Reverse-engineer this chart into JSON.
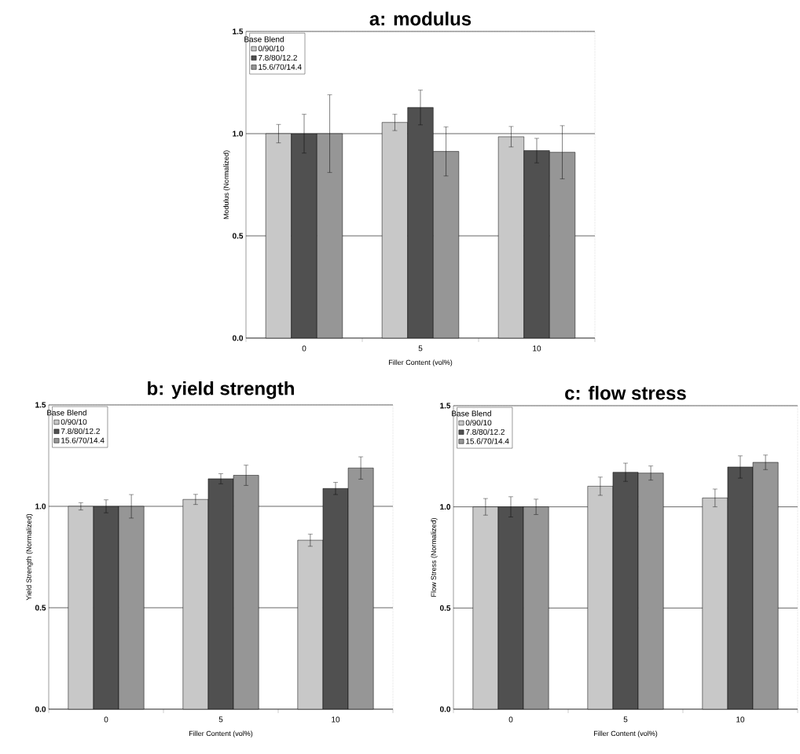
{
  "chart_data": [
    {
      "type": "bar",
      "title": "a:  modulus",
      "xlabel": "Filler Content (vol%)",
      "ylabel": "Modulus (Normalized)",
      "legend_title": "Base Blend",
      "categories": [
        "0",
        "5",
        "10"
      ],
      "series": [
        {
          "name": "0/90/10",
          "color": "#c8c8c8",
          "values": [
            1.0,
            1.055,
            0.985
          ],
          "errors": [
            0.045,
            0.04,
            0.05
          ]
        },
        {
          "name": "7.8/80/12.2",
          "color": "#505050",
          "values": [
            1.0,
            1.128,
            0.917
          ],
          "errors": [
            0.095,
            0.085,
            0.06
          ]
        },
        {
          "name": "15.6/70/14.4",
          "color": "#969696",
          "values": [
            1.0,
            0.913,
            0.909
          ],
          "errors": [
            0.19,
            0.12,
            0.13
          ]
        }
      ],
      "ylim": [
        0,
        1.5
      ],
      "yticks": [
        {
          "value": 0,
          "label": "0.0"
        },
        {
          "value": 0.5,
          "label": "0.5"
        },
        {
          "value": 1,
          "label": "1.0"
        },
        {
          "value": 1.5,
          "label": "1.5"
        }
      ],
      "grid": "y",
      "legend": "top left"
    },
    {
      "type": "bar",
      "title": "b:  yield strength",
      "xlabel": "Filler Content (vol%)",
      "ylabel": "Yield Strength (Normalized)",
      "legend_title": "Base Blend",
      "categories": [
        "0",
        "5",
        "10"
      ],
      "series": [
        {
          "name": "0/90/10",
          "color": "#c8c8c8",
          "values": [
            1.0,
            1.034,
            0.833
          ],
          "errors": [
            0.018,
            0.025,
            0.03
          ]
        },
        {
          "name": "7.8/80/12.2",
          "color": "#505050",
          "values": [
            1.0,
            1.136,
            1.088
          ],
          "errors": [
            0.032,
            0.025,
            0.03
          ]
        },
        {
          "name": "15.6/70/14.4",
          "color": "#969696",
          "values": [
            1.0,
            1.153,
            1.189
          ],
          "errors": [
            0.058,
            0.05,
            0.055
          ]
        }
      ],
      "ylim": [
        0,
        1.5
      ],
      "yticks": [
        {
          "value": 0,
          "label": "0.0"
        },
        {
          "value": 0.5,
          "label": "0.5"
        },
        {
          "value": 1,
          "label": "1.0"
        },
        {
          "value": 1.5,
          "label": "1.5"
        }
      ],
      "grid": "y",
      "legend": "top left"
    },
    {
      "type": "bar",
      "title": "c:  flow stress",
      "xlabel": "Filler Content (vol%)",
      "ylabel": "Flow Stress (Normalized)",
      "legend_title": "Base Blend",
      "categories": [
        "0",
        "5",
        "10"
      ],
      "series": [
        {
          "name": "0/90/10",
          "color": "#c8c8c8",
          "values": [
            1.0,
            1.102,
            1.044
          ],
          "errors": [
            0.041,
            0.045,
            0.044
          ]
        },
        {
          "name": "7.8/80/12.2",
          "color": "#505050",
          "values": [
            1.0,
            1.171,
            1.197
          ],
          "errors": [
            0.05,
            0.045,
            0.055
          ]
        },
        {
          "name": "15.6/70/14.4",
          "color": "#969696",
          "values": [
            1.0,
            1.167,
            1.22
          ],
          "errors": [
            0.038,
            0.035,
            0.036
          ]
        }
      ],
      "ylim": [
        0,
        1.5
      ],
      "yticks": [
        {
          "value": 0,
          "label": "0.0"
        },
        {
          "value": 0.5,
          "label": "0.5"
        },
        {
          "value": 1,
          "label": "1.0"
        },
        {
          "value": 1.5,
          "label": "1.5"
        }
      ],
      "grid": "y",
      "legend": "top left"
    }
  ]
}
